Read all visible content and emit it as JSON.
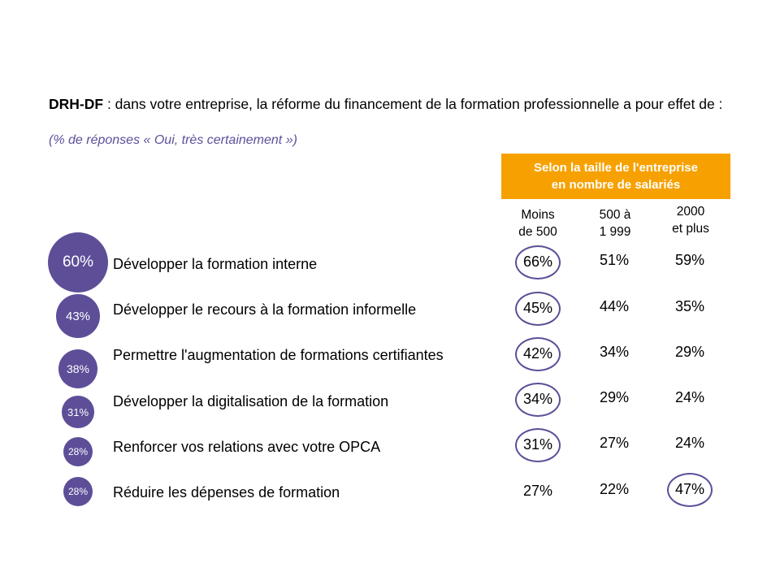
{
  "header": {
    "title_bold": "DRH-DF",
    "title_rest": " : dans votre entreprise, la réforme du financement de la formation professionnelle a pour effet de :",
    "subtitle": "(% de réponses « Oui, très certainement »)"
  },
  "size_header": {
    "line1": "Selon la taille de l'entreprise",
    "line2": "en nombre de salariés"
  },
  "columns": [
    {
      "line1": "Moins",
      "line2": "de 500"
    },
    {
      "line1": "500 à",
      "line2": "1 999"
    },
    {
      "line1": "2000",
      "line2": "et plus"
    }
  ],
  "colors": {
    "accent": "#5e4e98",
    "header_bg": "#f7a100"
  },
  "chart_data": {
    "type": "table",
    "title": "DRH-DF : dans votre entreprise, la réforme du financement de la formation professionnelle a pour effet de :",
    "subtitle": "(% de réponses « Oui, très certainement »)",
    "categories": [
      "Développer la formation interne",
      "Développer le recours à la formation informelle",
      "Permettre l'augmentation  de formations certifiantes",
      "Développer la digitalisation de la formation",
      "Renforcer vos relations avec votre OPCA",
      "Réduire les dépenses de formation"
    ],
    "overall": [
      "60%",
      "43%",
      "38%",
      "31%",
      "28%",
      "28%"
    ],
    "overall_values": [
      60,
      43,
      38,
      31,
      28,
      28
    ],
    "series": [
      {
        "name": "Moins de 500",
        "labels": [
          "66%",
          "45%",
          "42%",
          "34%",
          "31%",
          "27%"
        ],
        "values": [
          66,
          45,
          42,
          34,
          31,
          27
        ],
        "circled": [
          true,
          true,
          true,
          true,
          true,
          false
        ]
      },
      {
        "name": "500 à 1 999",
        "labels": [
          "51%",
          "44%",
          "34%",
          "29%",
          "27%",
          "22%"
        ],
        "values": [
          51,
          44,
          34,
          29,
          27,
          22
        ],
        "circled": [
          false,
          false,
          false,
          false,
          false,
          false
        ]
      },
      {
        "name": "2000 et plus",
        "labels": [
          "59%",
          "35%",
          "29%",
          "24%",
          "24%",
          "47%"
        ],
        "values": [
          59,
          35,
          29,
          24,
          24,
          47
        ],
        "circled": [
          false,
          false,
          false,
          false,
          false,
          true
        ]
      }
    ]
  }
}
